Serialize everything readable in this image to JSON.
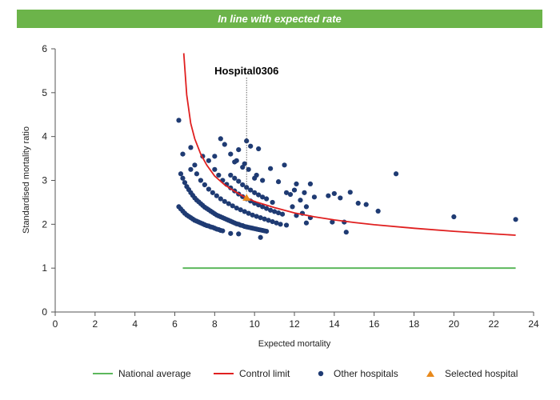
{
  "banner": {
    "text": "In line with expected rate"
  },
  "chart_data": {
    "type": "scatter",
    "title": "",
    "xlabel": "Expected mortality",
    "ylabel": "Standardised mortality ratio",
    "xlim": [
      0,
      24
    ],
    "ylim": [
      0,
      6
    ],
    "x_ticks": [
      0,
      2,
      4,
      6,
      8,
      10,
      12,
      14,
      16,
      18,
      20,
      22,
      24
    ],
    "y_ticks": [
      0,
      1,
      2,
      3,
      4,
      5,
      6
    ],
    "grid": false,
    "legend_position": "bottom",
    "colors": {
      "national": "#5cb85c",
      "control": "#e02020",
      "others": "#1f3b73",
      "selected": "#e8891c"
    },
    "legend": [
      "National average",
      "Control limit",
      "Other hospitals",
      "Selected hospital"
    ],
    "annotation": {
      "label": "Hospital0306",
      "x": 9.6,
      "y": 2.6
    },
    "national_average": {
      "name": "National average",
      "y": 1,
      "x_range": [
        6.4,
        23.1
      ]
    },
    "control_limit": {
      "name": "Control limit",
      "points": [
        [
          6.45,
          5.9
        ],
        [
          6.6,
          4.95
        ],
        [
          6.8,
          4.3
        ],
        [
          7.0,
          3.95
        ],
        [
          7.3,
          3.6
        ],
        [
          7.6,
          3.35
        ],
        [
          8.0,
          3.1
        ],
        [
          8.5,
          2.9
        ],
        [
          9.0,
          2.75
        ],
        [
          9.5,
          2.62
        ],
        [
          10.0,
          2.52
        ],
        [
          11.0,
          2.38
        ],
        [
          12.0,
          2.26
        ],
        [
          13.0,
          2.17
        ],
        [
          14.0,
          2.1
        ],
        [
          15.0,
          2.04
        ],
        [
          16.0,
          1.99
        ],
        [
          18.0,
          1.91
        ],
        [
          20.0,
          1.84
        ],
        [
          22.0,
          1.78
        ],
        [
          23.1,
          1.75
        ]
      ]
    },
    "selected_hospital": {
      "name": "Selected hospital",
      "x": 9.6,
      "y": 2.6
    },
    "other_hospitals": {
      "name": "Other hospitals",
      "points": [
        [
          6.2,
          2.4
        ],
        [
          6.3,
          2.35
        ],
        [
          6.4,
          2.3
        ],
        [
          6.5,
          2.25
        ],
        [
          6.6,
          2.21
        ],
        [
          6.7,
          2.18
        ],
        [
          6.8,
          2.15
        ],
        [
          6.9,
          2.12
        ],
        [
          7.0,
          2.09
        ],
        [
          7.1,
          2.07
        ],
        [
          7.2,
          2.05
        ],
        [
          7.3,
          2.03
        ],
        [
          7.4,
          2.01
        ],
        [
          7.5,
          1.99
        ],
        [
          7.6,
          1.97
        ],
        [
          7.7,
          1.96
        ],
        [
          7.8,
          1.94
        ],
        [
          7.9,
          1.93
        ],
        [
          8.0,
          1.91
        ],
        [
          8.1,
          1.89
        ],
        [
          8.2,
          1.88
        ],
        [
          8.3,
          1.86
        ],
        [
          8.4,
          1.85
        ],
        [
          6.3,
          3.15
        ],
        [
          6.4,
          3.05
        ],
        [
          6.5,
          2.95
        ],
        [
          6.6,
          2.86
        ],
        [
          6.7,
          2.79
        ],
        [
          6.8,
          2.72
        ],
        [
          6.9,
          2.66
        ],
        [
          7.0,
          2.6
        ],
        [
          7.1,
          2.55
        ],
        [
          7.2,
          2.51
        ],
        [
          7.3,
          2.47
        ],
        [
          7.4,
          2.43
        ],
        [
          7.5,
          2.39
        ],
        [
          7.6,
          2.36
        ],
        [
          7.7,
          2.33
        ],
        [
          7.8,
          2.3
        ],
        [
          7.9,
          2.27
        ],
        [
          8.0,
          2.24
        ],
        [
          8.1,
          2.21
        ],
        [
          8.2,
          2.19
        ],
        [
          8.3,
          2.17
        ],
        [
          8.4,
          2.15
        ],
        [
          8.5,
          2.13
        ],
        [
          8.6,
          2.11
        ],
        [
          8.7,
          2.09
        ],
        [
          8.8,
          2.07
        ],
        [
          8.9,
          2.05
        ],
        [
          9.0,
          2.03
        ],
        [
          9.1,
          2.01
        ],
        [
          9.2,
          2.0
        ],
        [
          9.3,
          1.98
        ],
        [
          9.4,
          1.97
        ],
        [
          9.5,
          1.95
        ],
        [
          9.6,
          1.94
        ],
        [
          9.7,
          1.93
        ],
        [
          9.8,
          1.92
        ],
        [
          9.9,
          1.91
        ],
        [
          10.0,
          1.9
        ],
        [
          10.1,
          1.89
        ],
        [
          10.2,
          1.88
        ],
        [
          10.3,
          1.87
        ],
        [
          10.4,
          1.86
        ],
        [
          10.5,
          1.85
        ],
        [
          10.6,
          1.84
        ],
        [
          6.8,
          3.25
        ],
        [
          7.0,
          3.35
        ],
        [
          7.1,
          3.15
        ],
        [
          7.3,
          3.0
        ],
        [
          7.5,
          2.9
        ],
        [
          7.7,
          2.8
        ],
        [
          7.9,
          2.72
        ],
        [
          8.1,
          2.65
        ],
        [
          8.3,
          2.58
        ],
        [
          8.5,
          2.52
        ],
        [
          8.7,
          2.47
        ],
        [
          8.9,
          2.42
        ],
        [
          9.1,
          2.37
        ],
        [
          9.3,
          2.33
        ],
        [
          9.5,
          2.29
        ],
        [
          9.7,
          2.25
        ],
        [
          9.9,
          2.21
        ],
        [
          10.1,
          2.18
        ],
        [
          10.3,
          2.15
        ],
        [
          10.5,
          2.12
        ],
        [
          10.7,
          2.09
        ],
        [
          10.9,
          2.06
        ],
        [
          11.1,
          2.03
        ],
        [
          8.0,
          3.25
        ],
        [
          8.2,
          3.12
        ],
        [
          8.4,
          3.0
        ],
        [
          8.6,
          2.91
        ],
        [
          8.8,
          2.83
        ],
        [
          9.0,
          2.76
        ],
        [
          9.2,
          2.69
        ],
        [
          9.4,
          2.63
        ],
        [
          9.6,
          2.58
        ],
        [
          9.8,
          2.53
        ],
        [
          10.0,
          2.48
        ],
        [
          10.2,
          2.44
        ],
        [
          10.4,
          2.4
        ],
        [
          10.6,
          2.36
        ],
        [
          10.8,
          2.32
        ],
        [
          11.0,
          2.29
        ],
        [
          11.2,
          2.26
        ],
        [
          11.4,
          2.23
        ],
        [
          8.8,
          3.12
        ],
        [
          9.0,
          3.05
        ],
        [
          9.2,
          2.98
        ],
        [
          9.4,
          2.9
        ],
        [
          9.6,
          2.84
        ],
        [
          9.8,
          2.78
        ],
        [
          10.0,
          2.72
        ],
        [
          10.2,
          2.67
        ],
        [
          10.4,
          2.62
        ],
        [
          10.6,
          2.58
        ],
        [
          6.2,
          4.37
        ],
        [
          6.4,
          3.6
        ],
        [
          6.8,
          3.75
        ],
        [
          7.4,
          3.55
        ],
        [
          7.7,
          3.45
        ],
        [
          8.0,
          3.55
        ],
        [
          8.3,
          3.95
        ],
        [
          8.5,
          3.82
        ],
        [
          8.8,
          3.6
        ],
        [
          9.2,
          3.7
        ],
        [
          9.6,
          3.9
        ],
        [
          9.8,
          3.78
        ],
        [
          10.2,
          3.72
        ],
        [
          9.1,
          3.45
        ],
        [
          9.5,
          3.38
        ],
        [
          9.4,
          3.3
        ],
        [
          9.0,
          3.42
        ],
        [
          9.7,
          3.25
        ],
        [
          10.1,
          3.12
        ],
        [
          10.4,
          3.0
        ],
        [
          10.0,
          3.05
        ],
        [
          10.8,
          3.27
        ],
        [
          11.5,
          3.35
        ],
        [
          11.2,
          2.97
        ],
        [
          11.6,
          2.72
        ],
        [
          11.8,
          2.68
        ],
        [
          12.0,
          2.78
        ],
        [
          12.1,
          2.92
        ],
        [
          12.3,
          2.55
        ],
        [
          12.5,
          2.72
        ],
        [
          12.8,
          2.92
        ],
        [
          13.0,
          2.62
        ],
        [
          12.4,
          2.25
        ],
        [
          12.1,
          2.2
        ],
        [
          12.6,
          2.4
        ],
        [
          12.8,
          2.15
        ],
        [
          13.7,
          2.65
        ],
        [
          14.0,
          2.7
        ],
        [
          14.3,
          2.6
        ],
        [
          14.8,
          2.73
        ],
        [
          15.2,
          2.48
        ],
        [
          15.6,
          2.45
        ],
        [
          16.2,
          2.3
        ],
        [
          13.9,
          2.05
        ],
        [
          14.5,
          2.05
        ],
        [
          14.6,
          1.82
        ],
        [
          12.6,
          2.03
        ],
        [
          11.6,
          1.98
        ],
        [
          11.3,
          2.0
        ],
        [
          10.3,
          1.7
        ],
        [
          9.2,
          1.78
        ],
        [
          8.8,
          1.79
        ],
        [
          11.9,
          2.4
        ],
        [
          10.9,
          2.5
        ],
        [
          17.1,
          3.15
        ],
        [
          20.0,
          2.17
        ],
        [
          23.1,
          2.11
        ]
      ]
    }
  }
}
